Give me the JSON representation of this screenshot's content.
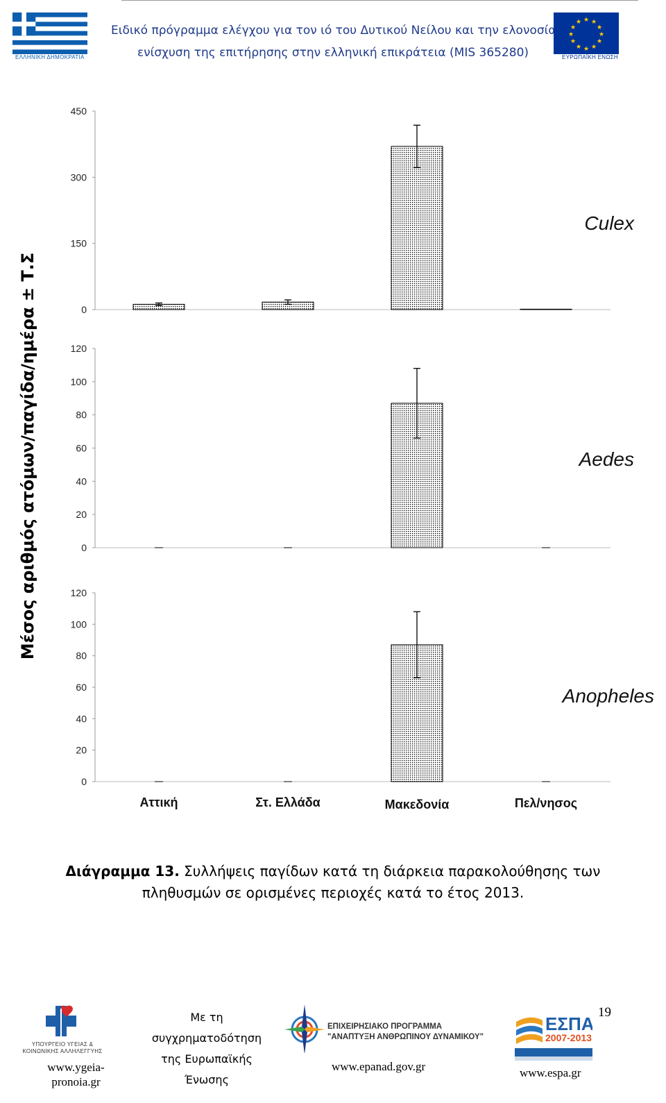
{
  "header": {
    "line1": "Ειδικό πρόγραμμα ελέγχου για τον ιό του Δυτικού Νείλου και την ελονοσία,",
    "line2": "ενίσχυση της επιτήρησης στην ελληνική επικράτεια (MIS 365280)",
    "left_logo_caption": "ΕΛΛΗΝΙΚΗ ΔΗΜΟΚΡΑΤΙΑ",
    "right_logo_caption": "ΕΥΡΩΠΑΪΚΗ ΕΝΩΣΗ"
  },
  "chart_data": {
    "type": "bar",
    "ylabel": "Μέσος αριθμός ατόμων/παγίδα/ημέρα ± Τ.Σ",
    "categories": [
      "Αττική",
      "Στ. Ελλάδα",
      "Μακεδονία",
      "Πελ/νησος"
    ],
    "panels": [
      {
        "name": "Culex",
        "ylim": [
          0,
          450
        ],
        "yticks": [
          0,
          150,
          300,
          450
        ],
        "values": [
          12,
          17,
          370,
          1
        ],
        "errors": [
          3,
          5,
          48,
          0
        ]
      },
      {
        "name": "Aedes",
        "ylim": [
          0,
          120
        ],
        "yticks": [
          0,
          20,
          40,
          60,
          80,
          100,
          120
        ],
        "values": [
          0,
          0,
          87,
          0
        ],
        "errors": [
          0,
          0,
          21,
          0
        ]
      },
      {
        "name": "Anopheles",
        "ylim": [
          0,
          120
        ],
        "yticks": [
          0,
          20,
          40,
          60,
          80,
          100,
          120
        ],
        "values": [
          0,
          0,
          87,
          0
        ],
        "errors": [
          0,
          0,
          21,
          0
        ]
      }
    ],
    "grid": false,
    "legend": "none"
  },
  "caption": {
    "label": "Διάγραμμα 13.",
    "text": "Συλλήψεις παγίδων κατά τη διάρκεια παρακολούθησης των πληθυσμών σε ορισμένες περιοχές κατά το έτος 2013."
  },
  "footer": {
    "ministry_caption": "ΥΠΟΥΡΓΕΙΟ ΥΓΕΙΑΣ & ΚΟΙΝΩΝΙΚΗΣ ΑΛΛΗΛΕΓΓΥΗΣ",
    "ministry_url": "www.ygeia-pronoia.gr",
    "cofunding_text": "Με τη συγχρηματοδότηση της Ευρωπαϊκής Ένωσης",
    "programme_line1": "ΕΠΙΧΕΙΡΗΣΙΑΚΟ ΠΡΟΓΡΑΜΜΑ",
    "programme_line2": "\"ΑΝΑΠΤΥΞΗ ΑΝΘΡΩΠΙΝΟΥ ΔΥΝΑΜΙΚΟΥ\"",
    "programme_url": "www.epanad.gov.gr",
    "espa_title": "ΕΣΠΑ",
    "espa_years": "2007-2013",
    "espa_url": "www.espa.gr",
    "page_number": "19"
  },
  "colors": {
    "header_text": "#1f3a8a",
    "greek_flag_blue": "#0d5eaf",
    "eu_blue": "#003399",
    "eu_gold": "#ffcc00",
    "bar_dots": "#000000"
  }
}
